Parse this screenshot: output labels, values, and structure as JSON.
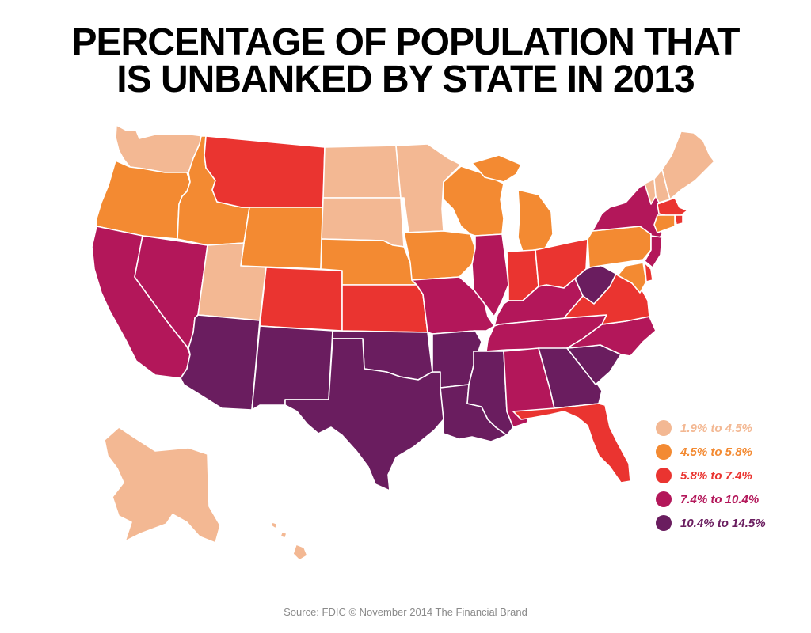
{
  "title": {
    "line1": "PERCENTAGE OF POPULATION THAT",
    "line2": "IS UNBANKED BY STATE IN 2013"
  },
  "legend": [
    {
      "label": "1.9% to 4.5%",
      "color": "#f3b893"
    },
    {
      "label": "4.5% to 5.8%",
      "color": "#f38a32"
    },
    {
      "label": "5.8% to 7.4%",
      "color": "#ea3430"
    },
    {
      "label": "7.4% to 10.4%",
      "color": "#b3175a"
    },
    {
      "label": "10.4% to 14.5%",
      "color": "#6a1d5f"
    }
  ],
  "state_bins": {
    "WA": 0,
    "OR": 1,
    "CA": 3,
    "NV": 3,
    "ID": 1,
    "MT": 2,
    "WY": 1,
    "UT": 0,
    "AZ": 4,
    "CO": 2,
    "NM": 4,
    "ND": 0,
    "SD": 0,
    "NE": 1,
    "KS": 2,
    "OK": 4,
    "TX": 4,
    "MN": 0,
    "IA": 1,
    "MO": 3,
    "AR": 4,
    "LA": 4,
    "WI": 1,
    "IL": 3,
    "MI": 1,
    "IN": 2,
    "OH": 2,
    "KY": 3,
    "TN": 3,
    "MS": 4,
    "AL": 3,
    "GA": 4,
    "FL": 2,
    "SC": 4,
    "NC": 3,
    "VA": 2,
    "WV": 4,
    "PA": 1,
    "NY": 3,
    "VT": 0,
    "NH": 0,
    "ME": 0,
    "MA": 2,
    "RI": 2,
    "CT": 1,
    "NJ": 3,
    "DE": 2,
    "MD": 1,
    "AK": 0,
    "HI": 0
  },
  "source": "Source: FDIC © November 2014 The Financial Brand"
}
